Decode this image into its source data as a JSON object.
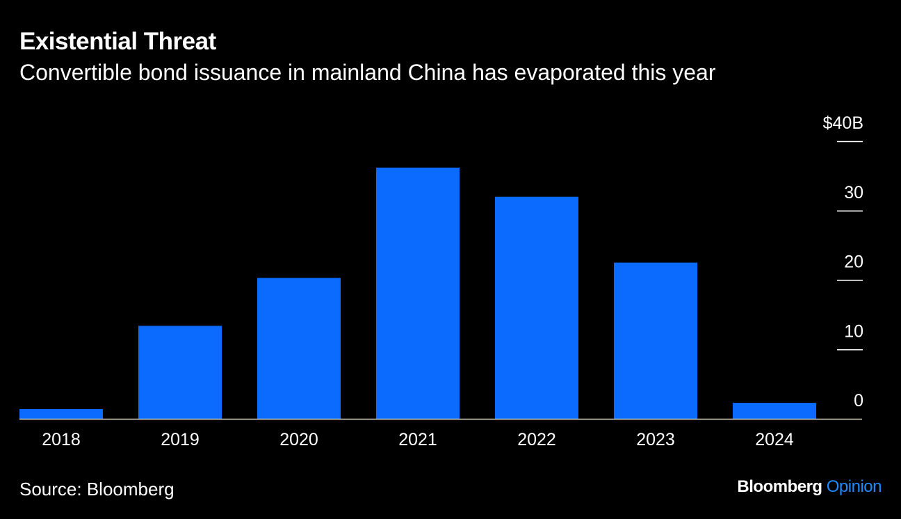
{
  "header": {
    "title": "Existential Threat",
    "subtitle": "Convertible bond issuance in mainland China has evaporated this year"
  },
  "footer": {
    "source": "Source: Bloomberg",
    "brand_primary": "Bloomberg",
    "brand_secondary": "Opinion"
  },
  "colors": {
    "background": "#000000",
    "bar": "#0b6bff",
    "text": "#ffffff",
    "brand_accent": "#1e8bff",
    "baseline": "#d8d2c0"
  },
  "chart_data": {
    "type": "bar",
    "title": "Existential Threat",
    "subtitle": "Convertible bond issuance in mainland China has evaporated this year",
    "categories": [
      "2018",
      "2019",
      "2020",
      "2021",
      "2022",
      "2023",
      "2024"
    ],
    "values": [
      1.4,
      13.4,
      20.3,
      36.2,
      32.0,
      22.5,
      2.3
    ],
    "y_tick_values": [
      0,
      10,
      20,
      30,
      40
    ],
    "y_tick_labels": [
      "0",
      "10",
      "20",
      "30",
      "$40B"
    ],
    "ylim": [
      0,
      40
    ],
    "y_axis_side": "right",
    "grid": false,
    "legend": "none",
    "xlabel": "",
    "ylabel": ""
  }
}
